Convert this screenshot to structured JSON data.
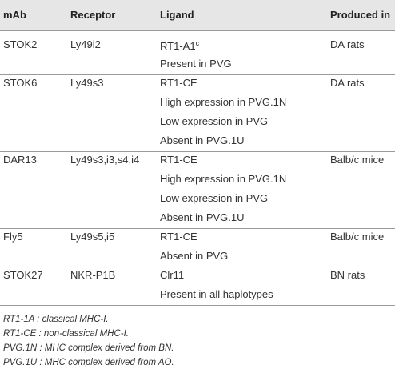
{
  "table": {
    "header": [
      "mAb",
      "Receptor",
      "Ligand",
      "Produced in"
    ],
    "rows": [
      {
        "mab": "STOK2",
        "receptor": "Ly49i2",
        "ligand": [
          "RT1-A1",
          "Present in PVG"
        ],
        "superscript": "c",
        "produced": "DA rats"
      },
      {
        "mab": "STOK6",
        "receptor": "Ly49s3",
        "ligand": [
          "RT1-CE",
          "High expression in PVG.1N",
          "Low expression in PVG",
          "Absent in PVG.1U"
        ],
        "produced": "DA rats"
      },
      {
        "mab": "DAR13",
        "receptor": "Ly49s3,i3,s4,i4",
        "ligand": [
          "RT1-CE",
          "High expression in PVG.1N",
          "Low expression in PVG",
          "Absent in PVG.1U"
        ],
        "produced": "Balb/c mice"
      },
      {
        "mab": "Fly5",
        "receptor": "Ly49s5,i5",
        "ligand": [
          "RT1-CE",
          "Absent in PVG"
        ],
        "produced": "Balb/c mice"
      },
      {
        "mab": "STOK27",
        "receptor": "NKR-P1B",
        "ligand": [
          "Clr11",
          "Present in all haplotypes"
        ],
        "produced": "BN rats"
      }
    ]
  },
  "footnotes": [
    "RT1-1A : classical MHC-I.",
    "RT1-CE : non-classical MHC-I.",
    "PVG.1N : MHC complex derived from BN.",
    "PVG.1U : MHC complex derived from AO."
  ]
}
